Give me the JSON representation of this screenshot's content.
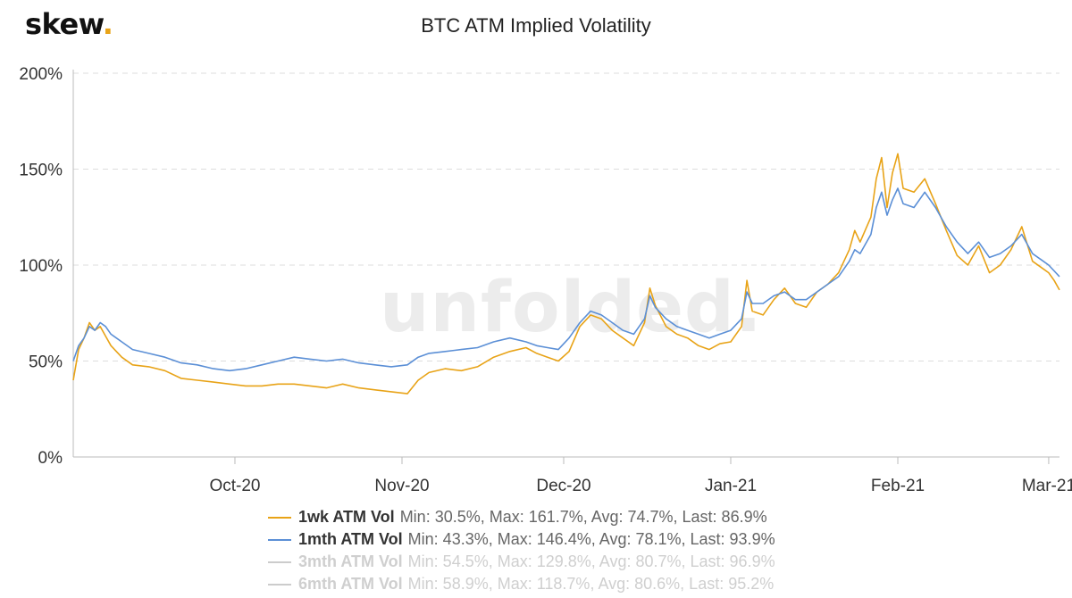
{
  "logo": {
    "text": "skew",
    "dot": "."
  },
  "watermark": "unfolded.",
  "chart_data": {
    "type": "line",
    "title": "BTC ATM Implied Volatility",
    "x_tick_labels": [
      "Oct-20",
      "Nov-20",
      "Dec-20",
      "Jan-21",
      "Feb-21",
      "Mar-21"
    ],
    "x_ticks": [
      "2020-10-01",
      "2020-11-01",
      "2020-12-01",
      "2021-01-01",
      "2021-02-01",
      "2021-03-01"
    ],
    "x_range": [
      "2020-09-01",
      "2021-03-03"
    ],
    "y_tick_labels": [
      "0%",
      "50%",
      "100%",
      "150%",
      "200%"
    ],
    "y_ticks": [
      0,
      50,
      100,
      150,
      200
    ],
    "ylim": [
      0,
      200
    ],
    "y_unit": "%",
    "grid": "horizontal dashed",
    "legend_position": "bottom",
    "series": [
      {
        "name": "1wk ATM Vol",
        "stats": "Min: 30.5%, Max: 161.7%, Avg: 74.7%, Last: 86.9%",
        "color": "#e8a317",
        "visible": true,
        "points": [
          [
            "2020-09-01",
            40
          ],
          [
            "2020-09-02",
            56
          ],
          [
            "2020-09-03",
            62
          ],
          [
            "2020-09-04",
            70
          ],
          [
            "2020-09-05",
            66
          ],
          [
            "2020-09-06",
            68
          ],
          [
            "2020-09-07",
            63
          ],
          [
            "2020-09-08",
            58
          ],
          [
            "2020-09-10",
            52
          ],
          [
            "2020-09-12",
            48
          ],
          [
            "2020-09-15",
            47
          ],
          [
            "2020-09-18",
            45
          ],
          [
            "2020-09-21",
            41
          ],
          [
            "2020-09-24",
            40
          ],
          [
            "2020-09-27",
            39
          ],
          [
            "2020-09-30",
            38
          ],
          [
            "2020-10-03",
            37
          ],
          [
            "2020-10-06",
            37
          ],
          [
            "2020-10-09",
            38
          ],
          [
            "2020-10-12",
            38
          ],
          [
            "2020-10-15",
            37
          ],
          [
            "2020-10-18",
            36
          ],
          [
            "2020-10-21",
            38
          ],
          [
            "2020-10-24",
            36
          ],
          [
            "2020-10-27",
            35
          ],
          [
            "2020-10-30",
            34
          ],
          [
            "2020-11-02",
            33
          ],
          [
            "2020-11-04",
            40
          ],
          [
            "2020-11-06",
            44
          ],
          [
            "2020-11-09",
            46
          ],
          [
            "2020-11-12",
            45
          ],
          [
            "2020-11-15",
            47
          ],
          [
            "2020-11-18",
            52
          ],
          [
            "2020-11-21",
            55
          ],
          [
            "2020-11-24",
            57
          ],
          [
            "2020-11-26",
            54
          ],
          [
            "2020-11-28",
            52
          ],
          [
            "2020-11-30",
            50
          ],
          [
            "2020-12-02",
            55
          ],
          [
            "2020-12-04",
            68
          ],
          [
            "2020-12-06",
            74
          ],
          [
            "2020-12-08",
            72
          ],
          [
            "2020-12-10",
            66
          ],
          [
            "2020-12-12",
            62
          ],
          [
            "2020-12-14",
            58
          ],
          [
            "2020-12-16",
            70
          ],
          [
            "2020-12-17",
            88
          ],
          [
            "2020-12-18",
            79
          ],
          [
            "2020-12-20",
            68
          ],
          [
            "2020-12-22",
            64
          ],
          [
            "2020-12-24",
            62
          ],
          [
            "2020-12-26",
            58
          ],
          [
            "2020-12-28",
            56
          ],
          [
            "2020-12-30",
            59
          ],
          [
            "2021-01-01",
            60
          ],
          [
            "2021-01-03",
            68
          ],
          [
            "2021-01-04",
            92
          ],
          [
            "2021-01-05",
            76
          ],
          [
            "2021-01-07",
            74
          ],
          [
            "2021-01-09",
            82
          ],
          [
            "2021-01-11",
            88
          ],
          [
            "2021-01-13",
            80
          ],
          [
            "2021-01-15",
            78
          ],
          [
            "2021-01-17",
            86
          ],
          [
            "2021-01-19",
            90
          ],
          [
            "2021-01-21",
            96
          ],
          [
            "2021-01-23",
            108
          ],
          [
            "2021-01-24",
            118
          ],
          [
            "2021-01-25",
            112
          ],
          [
            "2021-01-27",
            125
          ],
          [
            "2021-01-28",
            145
          ],
          [
            "2021-01-29",
            156
          ],
          [
            "2021-01-30",
            130
          ],
          [
            "2021-01-31",
            148
          ],
          [
            "2021-02-01",
            158
          ],
          [
            "2021-02-02",
            140
          ],
          [
            "2021-02-04",
            138
          ],
          [
            "2021-02-06",
            145
          ],
          [
            "2021-02-08",
            132
          ],
          [
            "2021-02-10",
            118
          ],
          [
            "2021-02-12",
            105
          ],
          [
            "2021-02-14",
            100
          ],
          [
            "2021-02-16",
            110
          ],
          [
            "2021-02-18",
            96
          ],
          [
            "2021-02-20",
            100
          ],
          [
            "2021-02-22",
            108
          ],
          [
            "2021-02-24",
            120
          ],
          [
            "2021-02-26",
            102
          ],
          [
            "2021-02-28",
            98
          ],
          [
            "2021-03-01",
            96
          ],
          [
            "2021-03-02",
            92
          ],
          [
            "2021-03-03",
            87
          ]
        ]
      },
      {
        "name": "1mth ATM Vol",
        "stats": "Min: 43.3%, Max: 146.4%, Avg: 78.1%, Last: 93.9%",
        "color": "#5b8fd6",
        "visible": true,
        "points": [
          [
            "2020-09-01",
            50
          ],
          [
            "2020-09-02",
            58
          ],
          [
            "2020-09-03",
            62
          ],
          [
            "2020-09-04",
            68
          ],
          [
            "2020-09-05",
            66
          ],
          [
            "2020-09-06",
            70
          ],
          [
            "2020-09-07",
            68
          ],
          [
            "2020-09-08",
            64
          ],
          [
            "2020-09-10",
            60
          ],
          [
            "2020-09-12",
            56
          ],
          [
            "2020-09-15",
            54
          ],
          [
            "2020-09-18",
            52
          ],
          [
            "2020-09-21",
            49
          ],
          [
            "2020-09-24",
            48
          ],
          [
            "2020-09-27",
            46
          ],
          [
            "2020-09-30",
            45
          ],
          [
            "2020-10-03",
            46
          ],
          [
            "2020-10-06",
            48
          ],
          [
            "2020-10-09",
            50
          ],
          [
            "2020-10-12",
            52
          ],
          [
            "2020-10-15",
            51
          ],
          [
            "2020-10-18",
            50
          ],
          [
            "2020-10-21",
            51
          ],
          [
            "2020-10-24",
            49
          ],
          [
            "2020-10-27",
            48
          ],
          [
            "2020-10-30",
            47
          ],
          [
            "2020-11-02",
            48
          ],
          [
            "2020-11-04",
            52
          ],
          [
            "2020-11-06",
            54
          ],
          [
            "2020-11-09",
            55
          ],
          [
            "2020-11-12",
            56
          ],
          [
            "2020-11-15",
            57
          ],
          [
            "2020-11-18",
            60
          ],
          [
            "2020-11-21",
            62
          ],
          [
            "2020-11-24",
            60
          ],
          [
            "2020-11-26",
            58
          ],
          [
            "2020-11-28",
            57
          ],
          [
            "2020-11-30",
            56
          ],
          [
            "2020-12-02",
            62
          ],
          [
            "2020-12-04",
            70
          ],
          [
            "2020-12-06",
            76
          ],
          [
            "2020-12-08",
            74
          ],
          [
            "2020-12-10",
            70
          ],
          [
            "2020-12-12",
            66
          ],
          [
            "2020-12-14",
            64
          ],
          [
            "2020-12-16",
            72
          ],
          [
            "2020-12-17",
            84
          ],
          [
            "2020-12-18",
            78
          ],
          [
            "2020-12-20",
            72
          ],
          [
            "2020-12-22",
            68
          ],
          [
            "2020-12-24",
            66
          ],
          [
            "2020-12-26",
            64
          ],
          [
            "2020-12-28",
            62
          ],
          [
            "2020-12-30",
            64
          ],
          [
            "2021-01-01",
            66
          ],
          [
            "2021-01-03",
            72
          ],
          [
            "2021-01-04",
            86
          ],
          [
            "2021-01-05",
            80
          ],
          [
            "2021-01-07",
            80
          ],
          [
            "2021-01-09",
            84
          ],
          [
            "2021-01-11",
            86
          ],
          [
            "2021-01-13",
            82
          ],
          [
            "2021-01-15",
            82
          ],
          [
            "2021-01-17",
            86
          ],
          [
            "2021-01-19",
            90
          ],
          [
            "2021-01-21",
            94
          ],
          [
            "2021-01-23",
            102
          ],
          [
            "2021-01-24",
            108
          ],
          [
            "2021-01-25",
            106
          ],
          [
            "2021-01-27",
            116
          ],
          [
            "2021-01-28",
            130
          ],
          [
            "2021-01-29",
            138
          ],
          [
            "2021-01-30",
            126
          ],
          [
            "2021-01-31",
            134
          ],
          [
            "2021-02-01",
            140
          ],
          [
            "2021-02-02",
            132
          ],
          [
            "2021-02-04",
            130
          ],
          [
            "2021-02-06",
            138
          ],
          [
            "2021-02-08",
            130
          ],
          [
            "2021-02-10",
            120
          ],
          [
            "2021-02-12",
            112
          ],
          [
            "2021-02-14",
            106
          ],
          [
            "2021-02-16",
            112
          ],
          [
            "2021-02-18",
            104
          ],
          [
            "2021-02-20",
            106
          ],
          [
            "2021-02-22",
            110
          ],
          [
            "2021-02-24",
            116
          ],
          [
            "2021-02-26",
            106
          ],
          [
            "2021-02-28",
            102
          ],
          [
            "2021-03-01",
            100
          ],
          [
            "2021-03-02",
            97
          ],
          [
            "2021-03-03",
            94
          ]
        ]
      },
      {
        "name": "3mth ATM Vol",
        "stats": "Min: 54.5%, Max: 129.8%, Avg: 80.7%, Last: 96.9%",
        "color": "#cccccc",
        "visible": false,
        "points": []
      },
      {
        "name": "6mth ATM Vol",
        "stats": "Min: 58.9%, Max: 118.7%, Avg: 80.6%, Last: 95.2%",
        "color": "#cccccc",
        "visible": false,
        "points": []
      }
    ]
  }
}
